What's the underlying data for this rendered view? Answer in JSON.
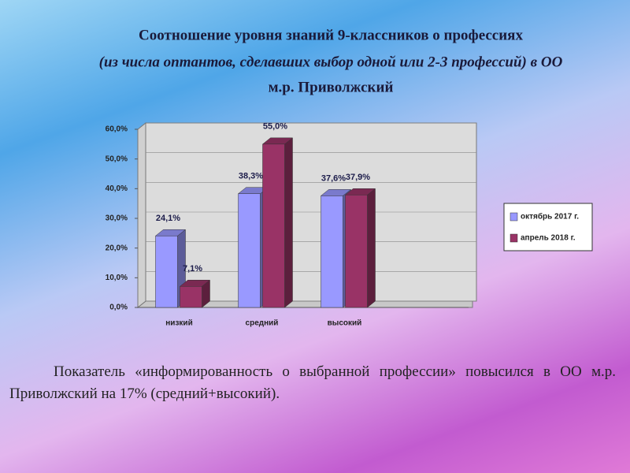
{
  "chart_data": {
    "type": "bar3d",
    "title": "Соотношение уровня знаний 9-классников о профессиях",
    "subtitle": "(из числа оптантов, сделавших выбор одной или 2-3 профессий) в ОО",
    "subtitle2": "м.р. Приволжский",
    "categories": [
      "низкий",
      "средний",
      "высокий",
      null
    ],
    "series": [
      {
        "name": "октябрь 2017 г.",
        "color": "#9999ff",
        "values": [
          24.1,
          38.3,
          37.6,
          null
        ],
        "value_labels": [
          "24,1%",
          "38,3%",
          "37,6%",
          null
        ]
      },
      {
        "name": "апрель 2018 г.",
        "color": "#993366",
        "values": [
          7.1,
          55.0,
          37.9,
          null
        ],
        "value_labels": [
          "7,1%",
          "55,0%",
          "37,9%",
          null
        ]
      }
    ],
    "ylim": [
      0,
      60
    ],
    "yticks": [
      {
        "value": 0,
        "label": "0,0%"
      },
      {
        "value": 10,
        "label": "10,0%"
      },
      {
        "value": 20,
        "label": "20,0%"
      },
      {
        "value": 30,
        "label": "30,0%"
      },
      {
        "value": 40,
        "label": "40,0%"
      },
      {
        "value": 50,
        "label": "50,0%"
      },
      {
        "value": 60,
        "label": "60,0%"
      }
    ],
    "legend": "right",
    "note": "Показатель «информированность о выбранной профессии» повысился в ОО м.р. Приволжский на 17% (средний+высокий)."
  }
}
